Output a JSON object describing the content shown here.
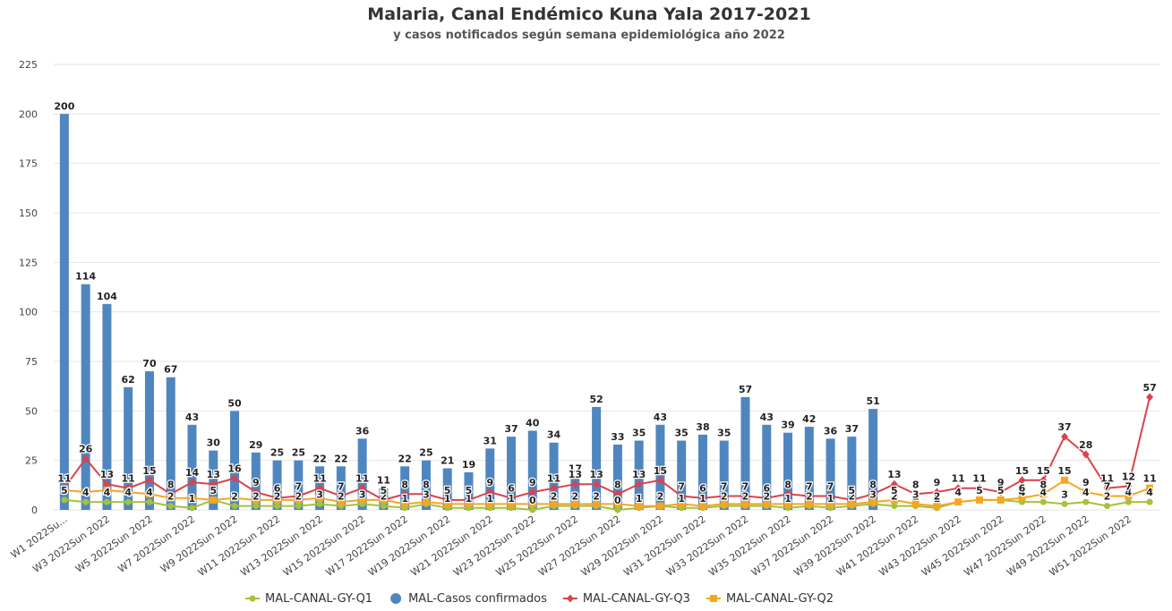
{
  "chart_data": {
    "type": "bar_line",
    "title": "Malaria, Canal Endémico Kuna Yala 2017-2021",
    "subtitle": "y casos notificados según semana epidemiológica año 2022",
    "categories": [
      "W1 2022Su...",
      null,
      "W3 2022Sun 2022",
      null,
      "W5 2022Sun 2022",
      null,
      "W7 2022Sun 2022",
      null,
      "W9 2022Sun 2022",
      null,
      "W11 2022Sun 2022",
      null,
      "W13 2022Sun 2022",
      null,
      "W15 2022Sun 2022",
      null,
      "W17 2022Sun 2022",
      null,
      "W19 2022Sun 2022",
      null,
      "W21 2022Sun 2022",
      null,
      "W23 2022Sun 2022",
      null,
      "W25 2022Sun 2022",
      null,
      "W27 2022Sun 2022",
      null,
      "W29 2022Sun 2022",
      null,
      "W31 2022Sun 2022",
      null,
      "W33 2022Sun 2022",
      null,
      "W35 2022Sun 2022",
      null,
      "W37 2022Sun 2022",
      null,
      "W39 2022Sun 2022",
      null,
      "W41 2022Sun 2022",
      null,
      "W43 2022Sun 2022",
      null,
      "W45 2022Sun 2022",
      null,
      "W47 2022Sun 2022",
      null,
      "W49 2022Sun 2022",
      null,
      "W51 2022Sun 2022",
      null
    ],
    "ylim": [
      0,
      225
    ],
    "yticks": [
      0,
      25,
      50,
      75,
      100,
      125,
      150,
      175,
      200,
      225
    ],
    "grid": true,
    "series": [
      {
        "name": "MAL-CANAL-GY-Q1",
        "kind": "line",
        "marker": "circle",
        "color": "#a5c23a",
        "values": [
          5,
          4,
          4,
          4,
          4,
          2,
          1,
          5,
          2,
          2,
          2,
          2,
          3,
          2,
          3,
          2,
          1,
          3,
          1,
          1,
          1,
          1,
          0,
          2,
          2,
          2,
          0,
          1,
          2,
          1,
          1,
          2,
          2,
          2,
          1,
          2,
          1,
          2,
          3,
          2,
          2,
          1,
          4,
          5,
          5,
          4,
          4,
          3,
          4,
          2,
          4,
          4
        ]
      },
      {
        "name": "MAL-Casos confirmados",
        "kind": "bar",
        "color": "#4f86c0",
        "values": [
          200,
          114,
          104,
          62,
          70,
          67,
          43,
          30,
          50,
          29,
          25,
          25,
          22,
          22,
          36,
          11,
          22,
          25,
          21,
          19,
          31,
          37,
          40,
          34,
          17,
          52,
          33,
          35,
          43,
          35,
          38,
          35,
          57,
          43,
          39,
          42,
          36,
          37,
          51,
          null,
          null,
          null,
          null,
          null,
          null,
          null,
          null,
          null,
          null,
          null,
          null,
          null
        ]
      },
      {
        "name": "MAL-CANAL-GY-Q3",
        "kind": "line",
        "marker": "diamond",
        "color": "#d9434d",
        "values": [
          11,
          26,
          13,
          11,
          15,
          8,
          14,
          13,
          16,
          9,
          6,
          7,
          11,
          7,
          11,
          5,
          8,
          8,
          5,
          5,
          9,
          6,
          9,
          11,
          13,
          13,
          8,
          13,
          15,
          7,
          6,
          7,
          7,
          6,
          8,
          7,
          7,
          5,
          8,
          13,
          8,
          9,
          11,
          11,
          9,
          15,
          15,
          37,
          28,
          11,
          12,
          57
        ]
      },
      {
        "name": "MAL-CANAL-GY-Q2",
        "kind": "line",
        "marker": "square",
        "color": "#f5a623",
        "values": [
          10,
          9,
          10,
          9,
          8,
          6,
          6,
          5,
          6,
          5,
          5,
          5,
          6,
          4,
          5,
          5,
          3,
          4,
          3,
          3,
          3,
          3,
          3,
          3,
          3,
          3,
          3,
          2,
          2,
          3,
          2,
          3,
          3,
          3,
          3,
          3,
          3,
          3,
          4,
          5,
          3,
          2,
          4,
          5,
          5,
          6,
          8,
          15,
          9,
          7,
          7,
          11
        ]
      }
    ]
  }
}
